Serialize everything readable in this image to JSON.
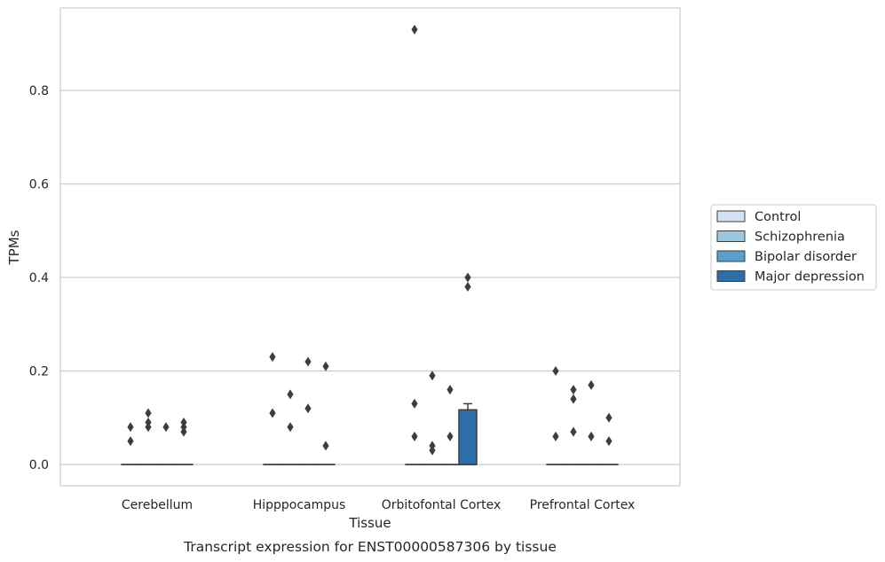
{
  "chart_data": {
    "type": "box",
    "title": "",
    "caption": "Transcript expression for ENST00000587306 by tissue",
    "xlabel": "Tissue",
    "ylabel": "TPMs",
    "ylim": [
      -0.045,
      0.98
    ],
    "yticks": [
      0.0,
      0.2,
      0.4,
      0.6,
      0.8
    ],
    "ytick_labels": [
      "0.0",
      "0.2",
      "0.4",
      "0.6",
      "0.8"
    ],
    "grid": "horizontal",
    "legend_position": "right",
    "categories": [
      "Cerebellum",
      "Hipppocampus",
      "Orbitofontal Cortex",
      "Prefrontal Cortex"
    ],
    "series": [
      {
        "name": "Control",
        "color": "#d2e3f3",
        "boxes": [
          {
            "q1": 0,
            "median": 0,
            "q3": 0,
            "whisker_high": 0,
            "outliers": [
              0.08,
              0.05
            ]
          },
          {
            "q1": 0,
            "median": 0,
            "q3": 0,
            "whisker_high": 0,
            "outliers": [
              0.23,
              0.11
            ]
          },
          {
            "q1": 0,
            "median": 0,
            "q3": 0,
            "whisker_high": 0,
            "outliers": [
              0.93,
              0.13,
              0.06
            ]
          },
          {
            "q1": 0,
            "median": 0,
            "q3": 0,
            "whisker_high": 0,
            "outliers": [
              0.2,
              0.06
            ]
          }
        ]
      },
      {
        "name": "Schizophrenia",
        "color": "#9ac8e0",
        "boxes": [
          {
            "q1": 0,
            "median": 0,
            "q3": 0,
            "whisker_high": 0,
            "outliers": [
              0.11,
              0.09,
              0.08
            ]
          },
          {
            "q1": 0,
            "median": 0,
            "q3": 0,
            "whisker_high": 0,
            "outliers": [
              0.15,
              0.08
            ]
          },
          {
            "q1": 0,
            "median": 0,
            "q3": 0,
            "whisker_high": 0,
            "outliers": [
              0.19,
              0.04,
              0.03
            ]
          },
          {
            "q1": 0,
            "median": 0,
            "q3": 0,
            "whisker_high": 0,
            "outliers": [
              0.16,
              0.14,
              0.07
            ]
          }
        ]
      },
      {
        "name": "Bipolar disorder",
        "color": "#5a9fcd",
        "boxes": [
          {
            "q1": 0,
            "median": 0,
            "q3": 0,
            "whisker_high": 0,
            "outliers": [
              0.08
            ]
          },
          {
            "q1": 0,
            "median": 0,
            "q3": 0,
            "whisker_high": 0,
            "outliers": [
              0.22,
              0.12
            ]
          },
          {
            "q1": 0,
            "median": 0,
            "q3": 0,
            "whisker_high": 0,
            "outliers": [
              0.16,
              0.06
            ]
          },
          {
            "q1": 0,
            "median": 0,
            "q3": 0,
            "whisker_high": 0,
            "outliers": [
              0.17,
              0.06
            ]
          }
        ]
      },
      {
        "name": "Major depression",
        "color": "#2e6ea8",
        "boxes": [
          {
            "q1": 0,
            "median": 0,
            "q3": 0,
            "whisker_high": 0,
            "outliers": [
              0.09,
              0.08,
              0.07
            ]
          },
          {
            "q1": 0,
            "median": 0,
            "q3": 0,
            "whisker_high": 0,
            "outliers": [
              0.21,
              0.04
            ]
          },
          {
            "q1": 0,
            "median": 0,
            "q3": 0.117,
            "whisker_high": 0.13,
            "outliers": [
              0.4,
              0.38
            ]
          },
          {
            "q1": 0,
            "median": 0,
            "q3": 0,
            "whisker_high": 0,
            "outliers": [
              0.1,
              0.05
            ]
          }
        ]
      }
    ]
  }
}
